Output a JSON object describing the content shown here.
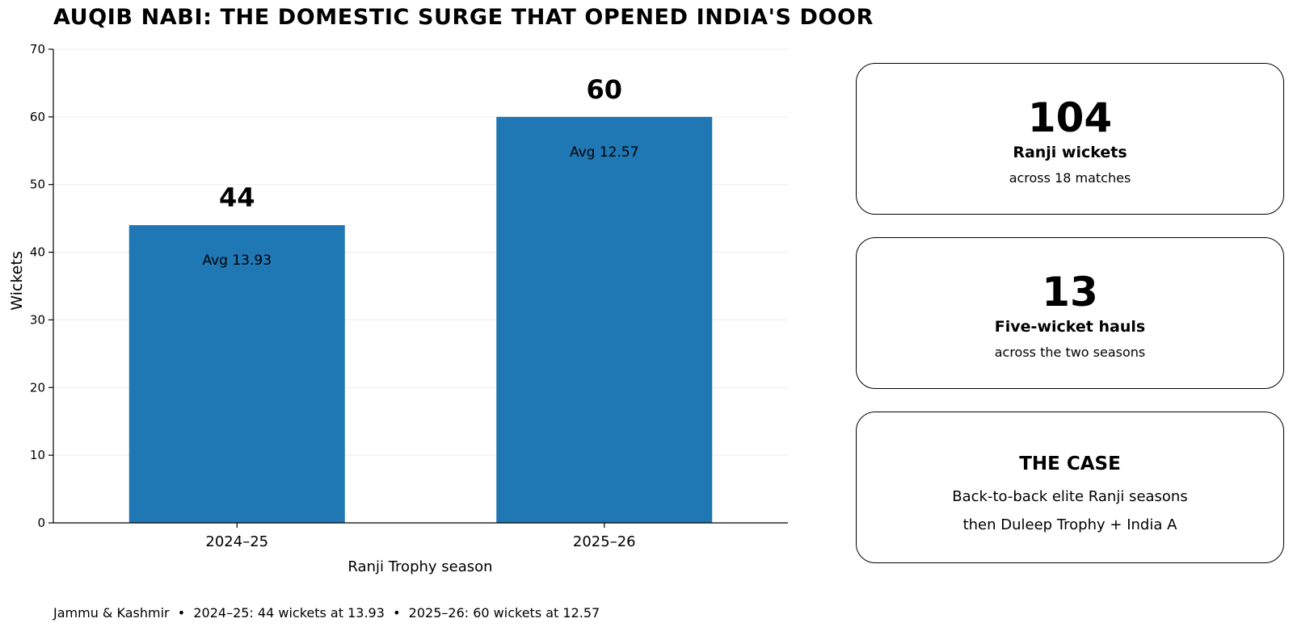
{
  "title": "AUQIB NABI: THE DOMESTIC SURGE THAT OPENED INDIA'S DOOR",
  "chart_data": {
    "type": "bar",
    "categories": [
      "2024–25",
      "2025–26"
    ],
    "values": [
      44,
      60
    ],
    "value_labels": [
      "44",
      "60"
    ],
    "bar_annotations": [
      "Avg 13.93",
      "Avg 12.57"
    ],
    "xlabel": "Ranji Trophy season",
    "ylabel": "Wickets",
    "ylim": [
      0,
      70
    ],
    "yticks": [
      0,
      10,
      20,
      30,
      40,
      50,
      60,
      70
    ],
    "grid": "horizontal",
    "bar_color": "#1f77b4"
  },
  "cards": [
    {
      "big": "104",
      "label": "Ranji wickets",
      "sub": "across 18 matches"
    },
    {
      "big": "13",
      "label": "Five-wicket hauls",
      "sub": "across the two seasons"
    }
  ],
  "case_card": {
    "title": "THE CASE",
    "lines": [
      "Back-to-back elite Ranji seasons",
      "then Duleep Trophy + India A"
    ]
  },
  "footer": "Jammu & Kashmir  •  2024–25: 44 wickets at 13.93  •  2025–26: 60 wickets at 12.57"
}
